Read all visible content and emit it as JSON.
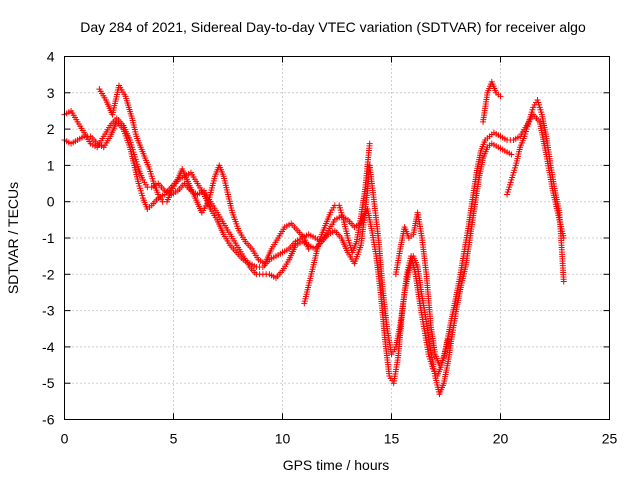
{
  "chart_data": {
    "type": "scatter",
    "title": "Day 284 of 2021, Sidereal Day-to-day VTEC variation (SDTVAR) for receiver algo",
    "xlabel": "GPS time / hours",
    "ylabel": "SDTVAR / TECUs",
    "xlim": [
      0,
      25
    ],
    "ylim": [
      -6,
      4
    ],
    "xticks": [
      "0",
      "5",
      "10",
      "15",
      "20",
      "25"
    ],
    "yticks": [
      "-6",
      "-5",
      "-4",
      "-3",
      "-2",
      "-1",
      "0",
      "1",
      "2",
      "3",
      "4"
    ],
    "grid": true,
    "legend": "none",
    "marker": "plus",
    "color": "#ff0000",
    "series": [
      {
        "values": [
          [
            0.0,
            2.4
          ],
          [
            0.3,
            2.5
          ],
          [
            0.6,
            2.2
          ],
          [
            0.9,
            1.9
          ],
          [
            1.2,
            1.6
          ],
          [
            1.5,
            1.5
          ],
          [
            1.8,
            1.8
          ],
          [
            2.1,
            2.1
          ],
          [
            2.4,
            2.3
          ],
          [
            2.7,
            2.1
          ],
          [
            3.0,
            1.7
          ],
          [
            3.2,
            1.3
          ],
          [
            3.4,
            0.9
          ],
          [
            3.6,
            0.6
          ],
          [
            3.8,
            0.4
          ],
          [
            4.0,
            0.4
          ],
          [
            4.3,
            0.5
          ],
          [
            4.6,
            0.3
          ],
          [
            4.9,
            0.2
          ],
          [
            5.2,
            0.3
          ],
          [
            5.5,
            0.5
          ],
          [
            5.8,
            0.3
          ],
          [
            6.1,
            0.2
          ],
          [
            6.4,
            0.3
          ],
          [
            6.7,
            0.0
          ],
          [
            7.0,
            -0.3
          ],
          [
            7.3,
            -0.6
          ],
          [
            7.6,
            -0.9
          ],
          [
            7.9,
            -1.2
          ],
          [
            8.2,
            -1.5
          ],
          [
            8.5,
            -1.8
          ],
          [
            8.8,
            -2.0
          ],
          [
            9.1,
            -2.0
          ],
          [
            9.4,
            -2.0
          ],
          [
            9.7,
            -2.1
          ],
          [
            10.0,
            -1.9
          ],
          [
            10.3,
            -1.6
          ],
          [
            10.6,
            -1.2
          ],
          [
            10.9,
            -1.1
          ],
          [
            11.2,
            -1.2
          ],
          [
            11.5,
            -1.3
          ],
          [
            11.8,
            -1.1
          ],
          [
            12.1,
            -0.8
          ],
          [
            12.4,
            -0.5
          ],
          [
            12.7,
            -0.4
          ],
          [
            13.0,
            -0.5
          ],
          [
            13.3,
            -0.7
          ],
          [
            13.6,
            -0.6
          ],
          [
            13.9,
            -0.2
          ],
          [
            14.1,
            -0.8
          ],
          [
            14.3,
            -1.5
          ],
          [
            14.5,
            -2.5
          ],
          [
            14.7,
            -3.8
          ],
          [
            14.9,
            -4.8
          ],
          [
            15.1,
            -5.0
          ],
          [
            15.3,
            -4.3
          ],
          [
            15.5,
            -3.0
          ],
          [
            15.7,
            -2.0
          ],
          [
            15.9,
            -1.5
          ],
          [
            16.1,
            -2.0
          ],
          [
            16.3,
            -2.8
          ],
          [
            16.5,
            -3.5
          ],
          [
            16.7,
            -4.2
          ],
          [
            16.9,
            -4.6
          ],
          [
            17.1,
            -4.8
          ],
          [
            17.3,
            -4.5
          ],
          [
            17.5,
            -4.0
          ],
          [
            17.7,
            -3.4
          ],
          [
            17.9,
            -2.8
          ],
          [
            18.1,
            -2.2
          ],
          [
            18.3,
            -1.5
          ],
          [
            18.5,
            -0.8
          ],
          [
            18.7,
            0.0
          ],
          [
            18.9,
            0.8
          ],
          [
            19.1,
            1.4
          ],
          [
            19.3,
            1.7
          ],
          [
            19.5,
            1.8
          ],
          [
            19.7,
            1.9
          ],
          [
            20.0,
            1.8
          ],
          [
            20.3,
            1.7
          ],
          [
            20.6,
            1.7
          ],
          [
            20.9,
            1.8
          ],
          [
            21.2,
            2.1
          ],
          [
            21.5,
            2.4
          ],
          [
            21.8,
            2.2
          ],
          [
            22.1,
            1.3
          ],
          [
            22.4,
            0.3
          ],
          [
            22.7,
            -0.5
          ],
          [
            22.9,
            -1.0
          ]
        ]
      },
      {
        "values": [
          [
            0.0,
            1.7
          ],
          [
            0.3,
            1.6
          ],
          [
            0.6,
            1.7
          ],
          [
            0.9,
            1.8
          ],
          [
            1.2,
            1.8
          ],
          [
            1.5,
            1.6
          ],
          [
            1.8,
            1.5
          ],
          [
            2.1,
            1.8
          ],
          [
            2.4,
            2.2
          ],
          [
            2.7,
            2.0
          ],
          [
            3.0,
            1.5
          ],
          [
            3.2,
            1.0
          ],
          [
            3.4,
            0.5
          ],
          [
            3.6,
            0.1
          ],
          [
            3.8,
            -0.2
          ],
          [
            4.0,
            -0.1
          ],
          [
            4.3,
            0.1
          ],
          [
            4.6,
            0.2
          ],
          [
            4.9,
            0.4
          ],
          [
            5.2,
            0.6
          ],
          [
            5.5,
            0.7
          ],
          [
            5.8,
            0.8
          ],
          [
            6.1,
            0.5
          ],
          [
            6.4,
            0.2
          ],
          [
            6.7,
            -0.2
          ],
          [
            7.0,
            -0.5
          ],
          [
            7.3,
            -0.9
          ],
          [
            7.6,
            -1.2
          ],
          [
            7.9,
            -1.4
          ],
          [
            8.2,
            -1.6
          ],
          [
            8.5,
            -1.7
          ],
          [
            8.8,
            -1.8
          ],
          [
            9.1,
            -1.8
          ],
          [
            9.4,
            -1.6
          ],
          [
            9.7,
            -1.5
          ],
          [
            10.0,
            -1.4
          ],
          [
            10.3,
            -1.3
          ],
          [
            10.6,
            -1.1
          ],
          [
            10.9,
            -1.0
          ],
          [
            11.2,
            -0.9
          ],
          [
            11.5,
            -1.0
          ],
          [
            11.8,
            -1.1
          ],
          [
            12.1,
            -0.9
          ],
          [
            12.4,
            -0.8
          ],
          [
            12.7,
            -1.0
          ],
          [
            13.0,
            -1.4
          ],
          [
            13.3,
            -1.7
          ],
          [
            13.6,
            -1.2
          ],
          [
            13.9,
            0.3
          ],
          [
            14.0,
            1.0
          ],
          [
            14.2,
            0.0
          ],
          [
            14.4,
            -1.0
          ],
          [
            14.6,
            -2.4
          ],
          [
            14.8,
            -3.5
          ],
          [
            15.0,
            -4.2
          ],
          [
            15.2,
            -4.0
          ],
          [
            15.4,
            -3.4
          ],
          [
            15.6,
            -2.5
          ],
          [
            15.8,
            -1.9
          ],
          [
            16.0,
            -1.5
          ],
          [
            16.2,
            -1.8
          ],
          [
            16.4,
            -2.6
          ],
          [
            16.6,
            -3.3
          ],
          [
            16.8,
            -4.1
          ],
          [
            17.0,
            -4.8
          ],
          [
            17.2,
            -5.3
          ],
          [
            17.4,
            -5.0
          ],
          [
            17.6,
            -4.4
          ],
          [
            17.8,
            -3.6
          ],
          [
            18.0,
            -2.9
          ],
          [
            18.2,
            -2.3
          ],
          [
            18.4,
            -1.8
          ],
          [
            18.6,
            -1.0
          ],
          [
            18.8,
            -0.2
          ],
          [
            19.0,
            0.6
          ],
          [
            19.2,
            1.2
          ],
          [
            19.4,
            1.5
          ],
          [
            19.6,
            1.6
          ],
          [
            19.9,
            1.5
          ],
          [
            20.2,
            1.4
          ],
          [
            20.5,
            1.3
          ]
        ]
      },
      {
        "values": [
          [
            1.6,
            3.1
          ],
          [
            1.9,
            2.8
          ],
          [
            2.2,
            2.4
          ],
          [
            2.5,
            3.2
          ],
          [
            2.8,
            2.9
          ],
          [
            3.1,
            2.3
          ],
          [
            3.3,
            1.8
          ],
          [
            3.5,
            1.5
          ],
          [
            3.7,
            1.2
          ],
          [
            3.9,
            0.9
          ],
          [
            4.1,
            0.5
          ],
          [
            4.3,
            0.2
          ],
          [
            4.5,
            0.0
          ],
          [
            4.7,
            0.0
          ],
          [
            4.9,
            0.3
          ],
          [
            5.1,
            0.5
          ],
          [
            5.4,
            0.9
          ],
          [
            5.7,
            0.5
          ],
          [
            6.0,
            0.1
          ],
          [
            6.3,
            -0.3
          ],
          [
            6.6,
            0.0
          ],
          [
            6.9,
            0.7
          ],
          [
            7.1,
            1.0
          ],
          [
            7.3,
            0.7
          ],
          [
            7.5,
            0.2
          ],
          [
            7.7,
            -0.3
          ],
          [
            8.0,
            -0.8
          ],
          [
            8.3,
            -1.1
          ],
          [
            8.6,
            -1.3
          ],
          [
            8.9,
            -1.6
          ],
          [
            9.2,
            -1.7
          ],
          [
            9.5,
            -1.3
          ],
          [
            9.8,
            -1.0
          ],
          [
            10.1,
            -0.7
          ],
          [
            10.4,
            -0.6
          ],
          [
            10.7,
            -0.8
          ],
          [
            11.0,
            -1.0
          ],
          [
            11.2,
            -1.3
          ]
        ]
      },
      {
        "values": [
          [
            11.0,
            -2.8
          ],
          [
            11.2,
            -2.3
          ],
          [
            11.4,
            -1.8
          ],
          [
            11.6,
            -1.3
          ],
          [
            11.8,
            -0.9
          ],
          [
            12.0,
            -0.6
          ],
          [
            12.2,
            -0.3
          ],
          [
            12.4,
            -0.1
          ],
          [
            12.6,
            -0.1
          ],
          [
            12.8,
            -0.5
          ],
          [
            13.0,
            -1.0
          ],
          [
            13.2,
            -1.4
          ],
          [
            13.4,
            -1.1
          ],
          [
            13.6,
            -0.4
          ],
          [
            13.8,
            0.4
          ],
          [
            14.0,
            1.6
          ]
        ]
      },
      {
        "values": [
          [
            15.2,
            -2.0
          ],
          [
            15.4,
            -1.3
          ],
          [
            15.6,
            -0.7
          ],
          [
            15.8,
            -1.0
          ],
          [
            16.0,
            -0.9
          ],
          [
            16.2,
            -0.3
          ],
          [
            16.4,
            -1.0
          ],
          [
            16.6,
            -2.0
          ],
          [
            16.8,
            -3.4
          ],
          [
            17.0,
            -4.2
          ],
          [
            17.2,
            -4.5
          ],
          [
            17.4,
            -4.3
          ],
          [
            17.6,
            -3.8
          ]
        ]
      },
      {
        "values": [
          [
            19.2,
            2.2
          ],
          [
            19.4,
            3.0
          ],
          [
            19.6,
            3.3
          ],
          [
            19.8,
            3.0
          ],
          [
            20.0,
            2.9
          ]
        ]
      },
      {
        "values": [
          [
            20.3,
            0.2
          ],
          [
            20.5,
            0.6
          ],
          [
            20.7,
            1.0
          ],
          [
            20.9,
            1.5
          ],
          [
            21.1,
            1.8
          ],
          [
            21.3,
            2.2
          ],
          [
            21.5,
            2.6
          ],
          [
            21.7,
            2.8
          ],
          [
            21.9,
            2.4
          ],
          [
            22.1,
            1.8
          ],
          [
            22.3,
            1.0
          ],
          [
            22.5,
            0.3
          ],
          [
            22.7,
            -0.3
          ],
          [
            22.8,
            -1.2
          ],
          [
            22.9,
            -2.2
          ]
        ]
      }
    ]
  }
}
